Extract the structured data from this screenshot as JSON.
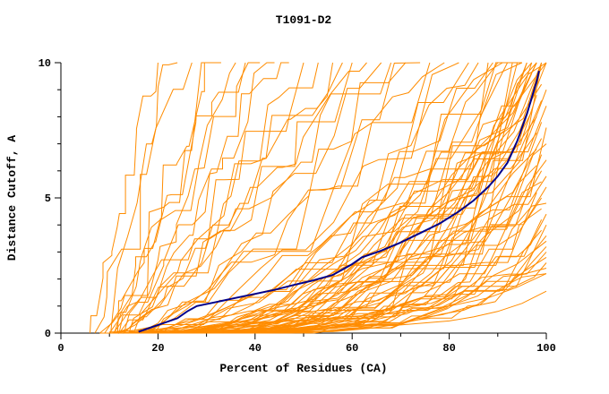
{
  "page": {
    "background": "#ffffff"
  },
  "chart_data": {
    "type": "line",
    "title": "T1091-D2",
    "xlabel": "Percent of Residues (CA)",
    "ylabel": "Distance Cutoff, A",
    "xlim": [
      0,
      100
    ],
    "ylim": [
      0,
      10
    ],
    "x_major_ticks": [
      0,
      20,
      40,
      60,
      80,
      100
    ],
    "x_minor_step": 10,
    "y_major_ticks": [
      0,
      5,
      10
    ],
    "y_minor_step": 1,
    "grid": false,
    "legend": "none",
    "axis_color": "#000000",
    "ensemble": {
      "name": "prediction-gdt-curves",
      "color": "#ff8c00",
      "stroke_width": 1,
      "curve_format": [
        "x_start_percent",
        "x_end_percent",
        "y_end_distance",
        "shape_exponent"
      ],
      "curves": [
        [
          6,
          20,
          10,
          0.9
        ],
        [
          7,
          24,
          10,
          1.0
        ],
        [
          8,
          27,
          10,
          0.8
        ],
        [
          9,
          30,
          10,
          1.1
        ],
        [
          10,
          33,
          10,
          0.9
        ],
        [
          8,
          36,
          10,
          1.2
        ],
        [
          11,
          38,
          10,
          0.8
        ],
        [
          12,
          41,
          10,
          1.0
        ],
        [
          9,
          44,
          10,
          1.3
        ],
        [
          13,
          47,
          10,
          0.9
        ],
        [
          10,
          50,
          10,
          1.1
        ],
        [
          14,
          53,
          10,
          1.0
        ],
        [
          12,
          56,
          10,
          1.2
        ],
        [
          15,
          58,
          10,
          0.9
        ],
        [
          11,
          60,
          10,
          1.4
        ],
        [
          13,
          63,
          10,
          1.1
        ],
        [
          16,
          66,
          10,
          1.3
        ],
        [
          12,
          68,
          10,
          1.0
        ],
        [
          17,
          71,
          10,
          1.2
        ],
        [
          14,
          74,
          10,
          1.5
        ],
        [
          18,
          76,
          10,
          1.1
        ],
        [
          15,
          79,
          10,
          1.3
        ],
        [
          10,
          82,
          10,
          1.8
        ],
        [
          12,
          84,
          10,
          2.0
        ],
        [
          14,
          86,
          10,
          1.6
        ],
        [
          11,
          88,
          10,
          2.2
        ],
        [
          13,
          89,
          10,
          1.9
        ],
        [
          15,
          90,
          10,
          2.4
        ],
        [
          12,
          91,
          10,
          2.0
        ],
        [
          16,
          92,
          10,
          1.7
        ],
        [
          14,
          93,
          10,
          2.3
        ],
        [
          17,
          94,
          10,
          2.1
        ],
        [
          13,
          95,
          10,
          2.6
        ],
        [
          18,
          95,
          10,
          1.9
        ],
        [
          15,
          96,
          10,
          2.2
        ],
        [
          19,
          96,
          10,
          2.5
        ],
        [
          16,
          97,
          10,
          2.0
        ],
        [
          20,
          97,
          10,
          2.8
        ],
        [
          14,
          98,
          10,
          2.3
        ],
        [
          18,
          98,
          10,
          2.6
        ],
        [
          21,
          98,
          10,
          2.1
        ],
        [
          16,
          99,
          10,
          2.9
        ],
        [
          19,
          99,
          10,
          2.4
        ],
        [
          22,
          99,
          10,
          2.7
        ],
        [
          17,
          100,
          10,
          2.5
        ],
        [
          20,
          100,
          10,
          3.0
        ],
        [
          23,
          100,
          10,
          2.2
        ],
        [
          15,
          97,
          9.6,
          2.4
        ],
        [
          16,
          98,
          9.4,
          2.8
        ],
        [
          18,
          99,
          9.2,
          2.2
        ],
        [
          20,
          100,
          9.0,
          3.0
        ],
        [
          17,
          98,
          8.8,
          2.5
        ],
        [
          19,
          99,
          8.6,
          3.2
        ],
        [
          21,
          100,
          8.4,
          2.6
        ],
        [
          18,
          97,
          8.2,
          2.9
        ],
        [
          20,
          98,
          8.0,
          3.4
        ],
        [
          22,
          99,
          7.8,
          2.4
        ],
        [
          19,
          100,
          7.6,
          3.1
        ],
        [
          21,
          98,
          7.4,
          2.7
        ],
        [
          23,
          99,
          7.2,
          3.5
        ],
        [
          20,
          100,
          7.0,
          2.5
        ],
        [
          22,
          98,
          6.8,
          3.0
        ],
        [
          24,
          99,
          6.6,
          2.8
        ],
        [
          21,
          100,
          6.4,
          3.3
        ],
        [
          23,
          98,
          6.2,
          2.6
        ],
        [
          25,
          99,
          6.0,
          3.6
        ],
        [
          22,
          100,
          5.8,
          2.9
        ],
        [
          24,
          99,
          5.6,
          3.2
        ],
        [
          26,
          100,
          5.4,
          2.7
        ],
        [
          23,
          98,
          5.2,
          3.4
        ],
        [
          25,
          99,
          5.0,
          3.0
        ],
        [
          27,
          100,
          4.8,
          2.8
        ],
        [
          24,
          99,
          4.6,
          3.5
        ],
        [
          26,
          100,
          4.4,
          3.1
        ],
        [
          28,
          99,
          4.2,
          2.9
        ],
        [
          25,
          100,
          4.0,
          3.3
        ],
        [
          27,
          99,
          3.8,
          3.0
        ],
        [
          29,
          100,
          3.6,
          3.6
        ],
        [
          26,
          100,
          3.4,
          3.2
        ],
        [
          28,
          100,
          3.2,
          2.9
        ],
        [
          30,
          100,
          3.0,
          3.4
        ],
        [
          27,
          100,
          2.8,
          3.1
        ],
        [
          29,
          100,
          2.6,
          3.7
        ],
        [
          31,
          100,
          2.4,
          3.3
        ],
        [
          28,
          100,
          2.2,
          3.0
        ]
      ],
      "explicit_curves": [
        [
          [
            14,
            0.05
          ],
          [
            30,
            0.1
          ],
          [
            50,
            0.18
          ],
          [
            70,
            0.3
          ],
          [
            80,
            0.45
          ],
          [
            85,
            0.6
          ],
          [
            90,
            0.8
          ],
          [
            95,
            1.1
          ],
          [
            100,
            1.55
          ]
        ],
        [
          [
            10,
            0.05
          ],
          [
            25,
            0.2
          ],
          [
            40,
            0.35
          ],
          [
            55,
            0.55
          ],
          [
            70,
            0.75
          ],
          [
            80,
            1.0
          ],
          [
            88,
            1.3
          ],
          [
            94,
            1.7
          ],
          [
            100,
            2.2
          ]
        ]
      ]
    },
    "highlight": {
      "name": "selected-model-curve",
      "color": "#00008b",
      "stroke_width": 2,
      "points": [
        [
          16,
          0.05
        ],
        [
          20,
          0.3
        ],
        [
          24,
          0.55
        ],
        [
          26,
          0.8
        ],
        [
          28,
          1.0
        ],
        [
          32,
          1.15
        ],
        [
          36,
          1.3
        ],
        [
          40,
          1.45
        ],
        [
          44,
          1.6
        ],
        [
          48,
          1.78
        ],
        [
          52,
          1.95
        ],
        [
          56,
          2.15
        ],
        [
          60,
          2.55
        ],
        [
          62,
          2.8
        ],
        [
          66,
          3.05
        ],
        [
          70,
          3.35
        ],
        [
          74,
          3.7
        ],
        [
          78,
          4.05
        ],
        [
          82,
          4.5
        ],
        [
          85,
          4.9
        ],
        [
          88,
          5.4
        ],
        [
          90,
          5.8
        ],
        [
          92,
          6.3
        ],
        [
          93,
          6.7
        ],
        [
          94,
          7.1
        ],
        [
          95,
          7.6
        ],
        [
          96,
          8.1
        ],
        [
          97,
          8.7
        ],
        [
          98,
          9.3
        ],
        [
          98.5,
          9.7
        ]
      ]
    }
  }
}
